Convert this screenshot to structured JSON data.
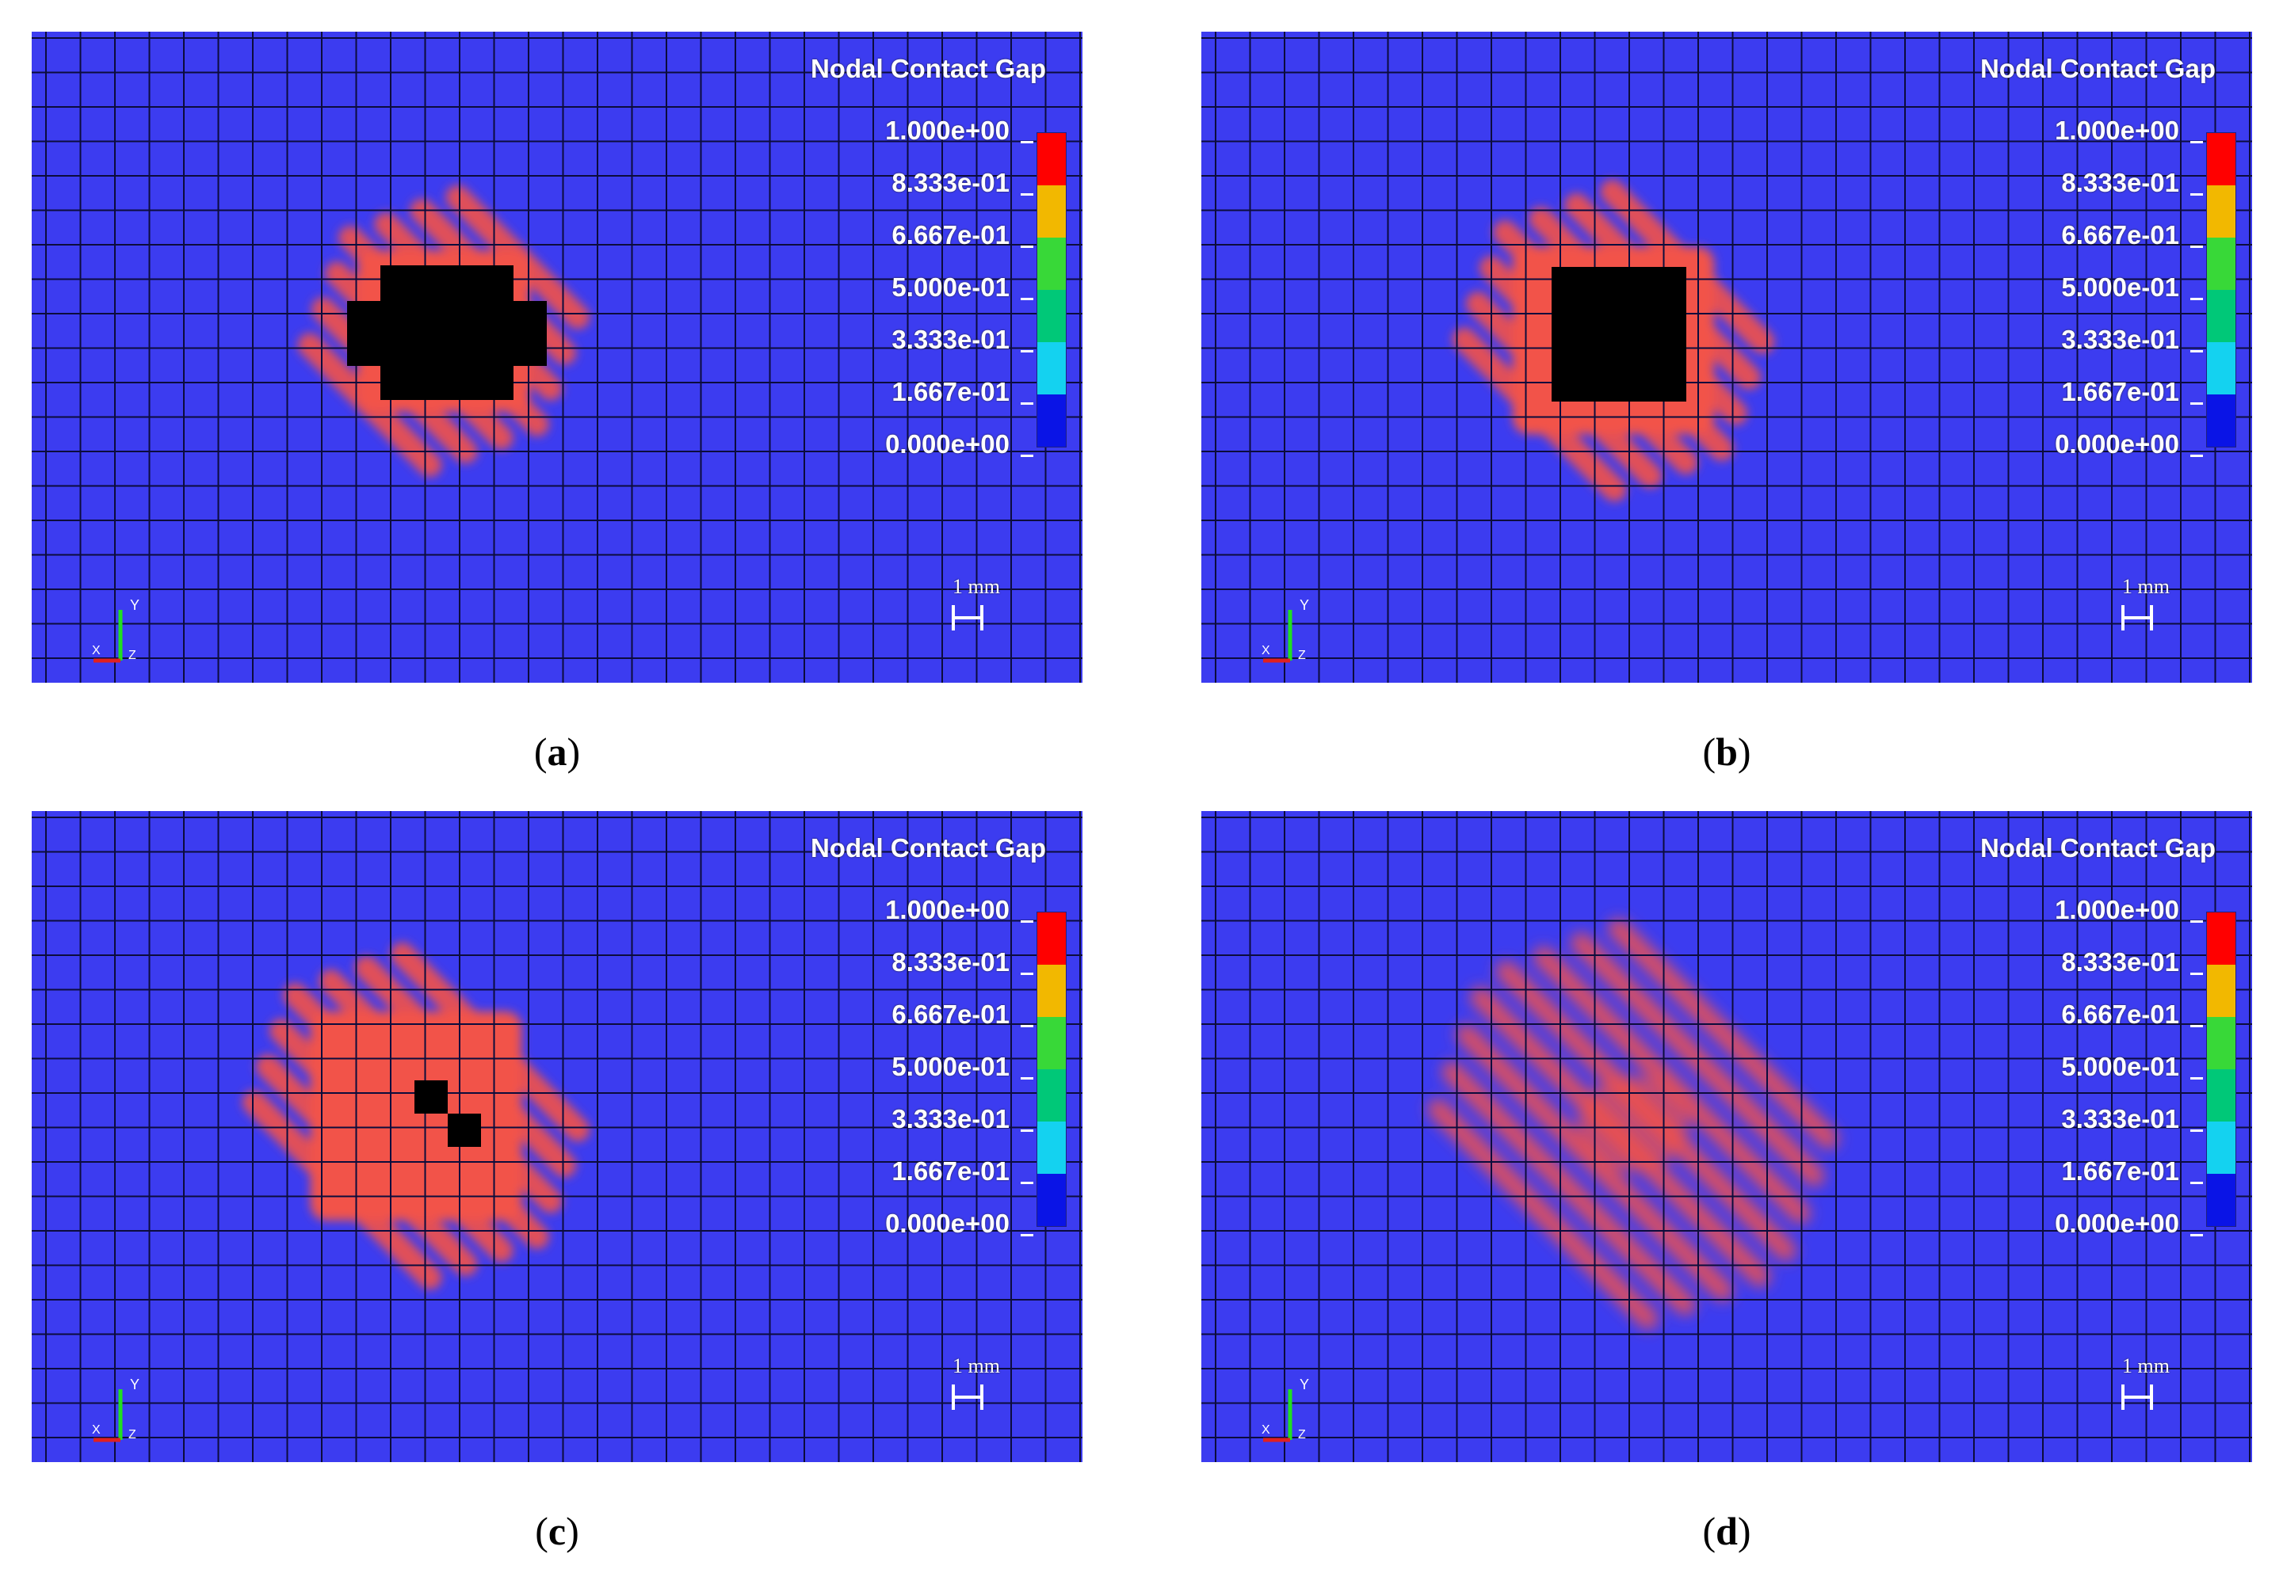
{
  "panels": [
    {
      "legend_title": "Nodal Contact Gap",
      "ticks": [
        "1.000e+00",
        "8.333e-01",
        "6.667e-01",
        "5.000e-01",
        "3.333e-01",
        "1.667e-01",
        "0.000e+00"
      ],
      "scale_label": "1 mm",
      "axis_labels": {
        "y": "Y",
        "x": "X",
        "z": "Z"
      },
      "caption": {
        "open": "(",
        "letter": "a",
        "close": ")"
      }
    },
    {
      "legend_title": "Nodal Contact Gap",
      "ticks": [
        "1.000e+00",
        "8.333e-01",
        "6.667e-01",
        "5.000e-01",
        "3.333e-01",
        "1.667e-01",
        "0.000e+00"
      ],
      "scale_label": "1 mm",
      "axis_labels": {
        "y": "Y",
        "x": "X",
        "z": "Z"
      },
      "caption": {
        "open": "(",
        "letter": "b",
        "close": ")"
      }
    },
    {
      "legend_title": "Nodal Contact Gap",
      "ticks": [
        "1.000e+00",
        "8.333e-01",
        "6.667e-01",
        "5.000e-01",
        "3.333e-01",
        "1.667e-01",
        "0.000e+00"
      ],
      "scale_label": "1 mm",
      "axis_labels": {
        "y": "Y",
        "x": "X",
        "z": "Z"
      },
      "caption": {
        "open": "(",
        "letter": "c",
        "close": ")"
      }
    },
    {
      "legend_title": "Nodal Contact Gap",
      "ticks": [
        "1.000e+00",
        "8.333e-01",
        "6.667e-01",
        "5.000e-01",
        "3.333e-01",
        "1.667e-01",
        "0.000e+00"
      ],
      "scale_label": "1 mm",
      "axis_labels": {
        "y": "Y",
        "x": "X",
        "z": "Z"
      },
      "caption": {
        "open": "(",
        "letter": "d",
        "close": ")"
      }
    }
  ],
  "colors": {
    "background_blue": "#3c3cf0",
    "contact_red": "#f2524a",
    "void_black": "#000000",
    "colorbar": [
      "#ff0000",
      "#f2b800",
      "#38d838",
      "#00c878",
      "#14d2f0",
      "#0a14e6"
    ]
  }
}
